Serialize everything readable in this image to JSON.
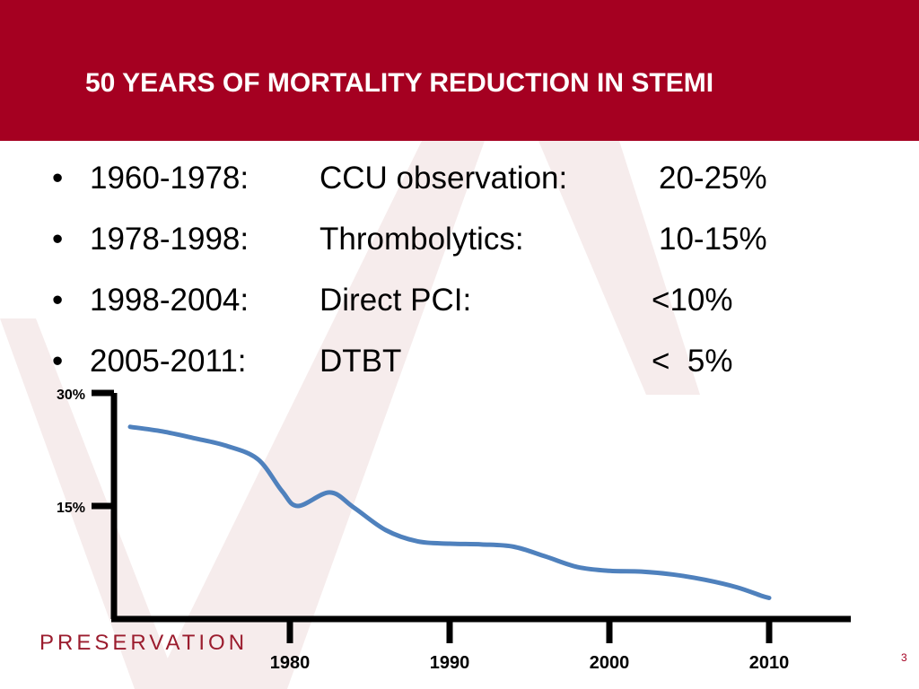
{
  "slide": {
    "title": "50 YEARS OF MORTALITY REDUCTION IN STEMI",
    "page_number": "3",
    "logo_text": "PRESERVATION",
    "accent_color": "#a50021"
  },
  "bullets": [
    {
      "period": "1960-1978:",
      "description": "CCU observation:",
      "value": "20-25%"
    },
    {
      "period": "1978-1998:",
      "description": "Thrombolytics:",
      "value": "10-15%"
    },
    {
      "period": "1998-2004:",
      "description": "Direct PCI:",
      "value": "<10%"
    },
    {
      "period": "2005-2011:",
      "description": "DTBT",
      "value": "<  5%"
    }
  ],
  "chart_data": {
    "type": "line",
    "x_ticks": [
      "1980",
      "1990",
      "2000",
      "2010"
    ],
    "y_ticks": [
      "30%",
      "15%"
    ],
    "ylim": [
      0,
      30
    ],
    "xlim": [
      1969,
      2015
    ],
    "series": [
      {
        "color": "#4f81bd",
        "points": [
          [
            1970,
            25.5
          ],
          [
            1972,
            24.9
          ],
          [
            1974,
            24.0
          ],
          [
            1976,
            23.0
          ],
          [
            1978,
            21.2
          ],
          [
            1979.5,
            17.0
          ],
          [
            1980.5,
            15.0
          ],
          [
            1982.5,
            16.8
          ],
          [
            1984,
            14.8
          ],
          [
            1986,
            11.8
          ],
          [
            1988,
            10.3
          ],
          [
            1990,
            10.0
          ],
          [
            1992,
            9.9
          ],
          [
            1994,
            9.6
          ],
          [
            1996,
            8.3
          ],
          [
            1998,
            6.9
          ],
          [
            2000,
            6.4
          ],
          [
            2002,
            6.3
          ],
          [
            2004,
            5.9
          ],
          [
            2006,
            5.2
          ],
          [
            2008,
            4.2
          ],
          [
            2009.5,
            3.1
          ],
          [
            2010,
            2.8
          ]
        ]
      }
    ],
    "grid": false,
    "legend": "none"
  },
  "icons": {
    "bullet": "•",
    "watermark": "va-logo-watermark"
  }
}
